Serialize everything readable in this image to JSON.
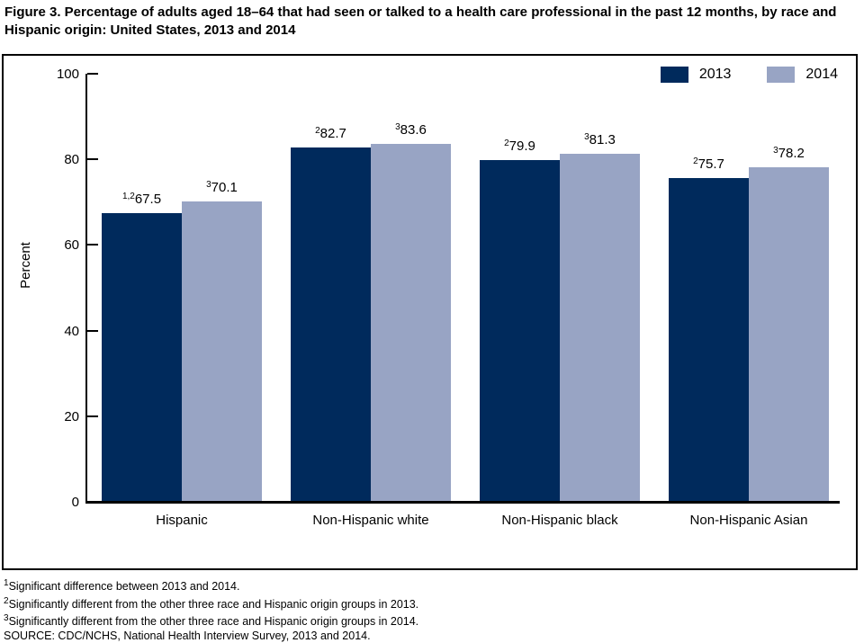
{
  "figure": {
    "title": "Figure 3. Percentage of adults aged 18–64 that had seen or talked to a health care professional in the past 12 months, by race and Hispanic origin: United States, 2013 and 2014"
  },
  "chart_data": {
    "type": "bar",
    "categories": [
      "Hispanic",
      "Non-Hispanic white",
      "Non-Hispanic black",
      "Non-Hispanic Asian"
    ],
    "series": [
      {
        "name": "2013",
        "color": "#002A5C",
        "values": [
          67.5,
          82.7,
          79.9,
          75.7
        ],
        "superscripts": [
          "1,2",
          "2",
          "2",
          "2"
        ]
      },
      {
        "name": "2014",
        "color": "#98A4C4",
        "values": [
          70.1,
          83.6,
          81.3,
          78.2
        ],
        "superscripts": [
          "3",
          "3",
          "3",
          "3"
        ]
      }
    ],
    "title": "",
    "xlabel": "",
    "ylabel": "Percent",
    "ylim": [
      0,
      100
    ],
    "yticks": [
      0,
      20,
      40,
      60,
      80,
      100
    ],
    "legend_position": "top-right",
    "grid": false,
    "axis_color": "#000000",
    "background": "#FFFFFF"
  },
  "footnotes": [
    {
      "sup": "1",
      "text": "Significant difference between 2013 and 2014."
    },
    {
      "sup": "2",
      "text": "Significantly different from the other three race and Hispanic origin groups in 2013."
    },
    {
      "sup": "3",
      "text": "Significantly different from the other three race and Hispanic origin groups in 2014."
    },
    {
      "sup": "",
      "text": "SOURCE: CDC/NCHS, National Health Interview Survey, 2013 and 2014."
    }
  ]
}
